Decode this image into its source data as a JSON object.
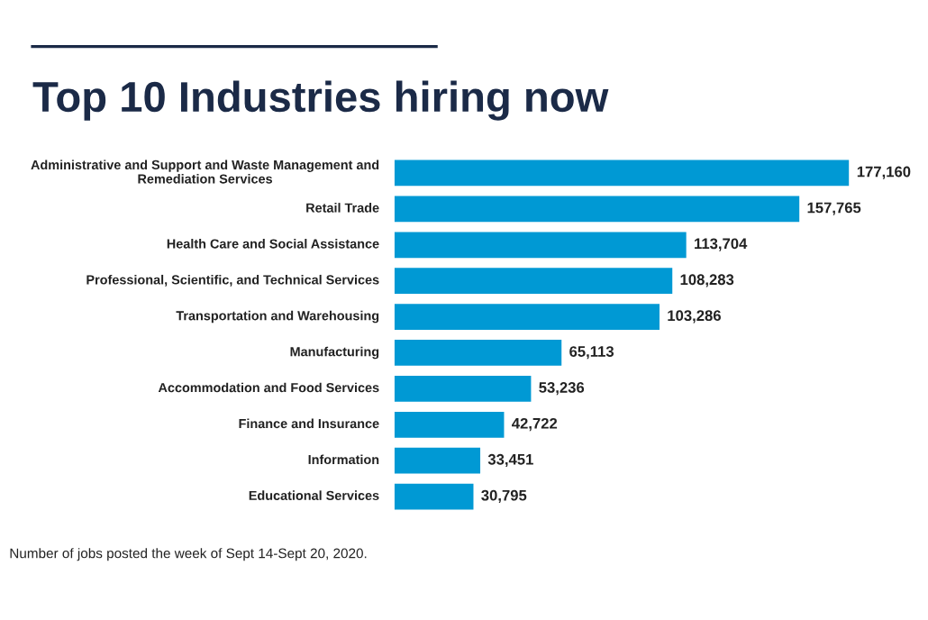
{
  "chart_data": {
    "type": "bar",
    "orientation": "horizontal",
    "title": "Top 10 Industries hiring now",
    "categories": [
      "Administrative and Support and Waste Management and Remediation Services",
      "Retail Trade",
      "Health Care and Social Assistance",
      "Professional, Scientific, and Technical Services",
      "Transportation and Warehousing",
      "Manufacturing",
      "Accommodation and Food Services",
      "Finance and Insurance",
      "Information",
      "Educational Services"
    ],
    "values": [
      177160,
      157765,
      113704,
      108283,
      103286,
      65113,
      53236,
      42722,
      33451,
      30795
    ],
    "value_labels": [
      "177,160",
      "157,765",
      "113,704",
      "108,283",
      "103,286",
      "65,113",
      "53,236",
      "42,722",
      "33,451",
      "30,795"
    ],
    "color": "#0099d4",
    "annotations": [
      "Number of jobs posted the week of Sept 14-Sept 20, 2020."
    ],
    "grid": false,
    "legend": false
  }
}
